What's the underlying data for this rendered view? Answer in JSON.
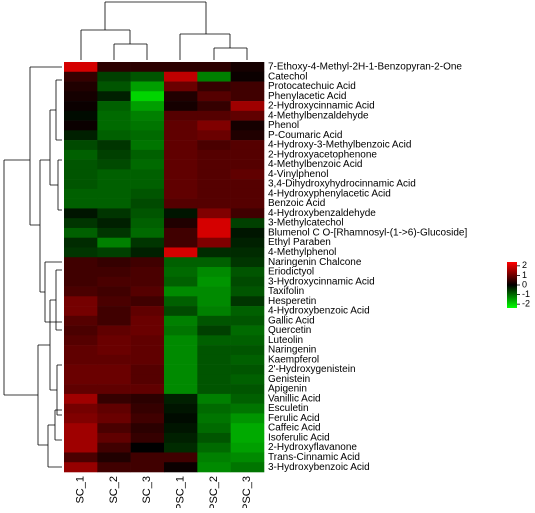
{
  "chart_data": {
    "type": "heatmap",
    "rows": [
      "7-Ethoxy-4-Methyl-2H-1-Benzopyran-2-One",
      "Catechol",
      "Protocatechuic Acid",
      "Phenylacetic Acid",
      "2-Hydroxycinnamic Acid",
      "4-Methylbenzaldehyde",
      "Phenol",
      "P-Coumaric Acid",
      "4-Hydroxy-3-Methylbenzoic Acid",
      "2-Hydroxyacetophenone",
      "4-Methylbenzoic Acid",
      "4-Vinylphenol",
      "3,4-Dihydroxyhydrocinnamic Acid",
      "4-Hydroxyphenylacetic Acid",
      "Benzoic Acid",
      "4-Hydroxybenzaldehyde",
      "3-Methylcatechol",
      "Blumenol C O-[Rhamnosyl-(1->6)-Glucoside]",
      "Ethyl Paraben",
      "4-Methylphenol",
      "Naringenin Chalcone",
      "Eriodictyol",
      "3-Hydroxycinnamic Acid",
      "Taxifolin",
      "Hesperetin",
      "4-Hydroxybenzoic Acid",
      "Gallic Acid",
      "Quercetin",
      "Luteolin",
      "Naringenin",
      "Kaempferol",
      "2'-Hydroxygenistein",
      "Genistein",
      "Apigenin",
      "Vanillic Acid",
      "Esculetin",
      "Ferulic Acid",
      "Caffeic Acid",
      "Isoferulic Acid",
      "2-Hydroxyflavanone",
      "Trans-Cinnamic Acid",
      "3-Hydroxybenzoic Acid"
    ],
    "columns": [
      "SC_1",
      "SC_2",
      "SC_3",
      "PSC_1",
      "PSC_2",
      "PSC_3"
    ],
    "values": [
      [
        2.0,
        0.4,
        0.4,
        0.4,
        0.4,
        0.2
      ],
      [
        0.5,
        -0.6,
        -0.8,
        1.8,
        -1.2,
        0.1
      ],
      [
        0.3,
        -0.8,
        -1.5,
        1.0,
        0.5,
        0.6
      ],
      [
        0.2,
        -0.3,
        -2.0,
        0.3,
        0.8,
        0.6
      ],
      [
        0.1,
        -0.9,
        -1.5,
        0.2,
        0.5,
        1.5
      ],
      [
        -0.1,
        -1.0,
        -1.2,
        0.8,
        0.8,
        0.9
      ],
      [
        0.1,
        -1.0,
        -1.1,
        0.9,
        1.2,
        0.2
      ],
      [
        -0.3,
        -0.9,
        -1.0,
        0.9,
        1.0,
        0.3
      ],
      [
        -0.7,
        -0.5,
        -1.1,
        0.9,
        0.7,
        0.8
      ],
      [
        -0.9,
        -0.6,
        -0.9,
        0.9,
        0.8,
        0.8
      ],
      [
        -0.8,
        -0.7,
        -1.0,
        0.9,
        0.8,
        0.8
      ],
      [
        -0.8,
        -0.9,
        -0.9,
        0.9,
        0.8,
        0.9
      ],
      [
        -0.8,
        -0.9,
        -0.9,
        0.9,
        0.8,
        0.8
      ],
      [
        -0.9,
        -0.9,
        -0.8,
        0.9,
        0.8,
        0.8
      ],
      [
        -0.9,
        -0.9,
        -0.7,
        0.8,
        0.8,
        0.8
      ],
      [
        -0.2,
        -0.5,
        -0.8,
        -0.2,
        1.2,
        0.6
      ],
      [
        -0.5,
        -0.3,
        -0.9,
        0.3,
        2.0,
        -0.6
      ],
      [
        -0.9,
        -0.5,
        -1.0,
        0.6,
        2.0,
        -0.2
      ],
      [
        -0.4,
        -1.2,
        -0.5,
        0.6,
        1.2,
        -0.3
      ],
      [
        -0.5,
        -0.6,
        -0.3,
        2.0,
        -0.4,
        -0.4
      ],
      [
        0.6,
        0.5,
        0.6,
        -0.9,
        -0.9,
        -0.5
      ],
      [
        0.6,
        0.6,
        0.7,
        -1.0,
        -1.3,
        -0.8
      ],
      [
        0.6,
        0.7,
        0.7,
        -0.9,
        -1.4,
        -0.7
      ],
      [
        0.7,
        0.6,
        0.8,
        -1.3,
        -1.3,
        -0.8
      ],
      [
        1.1,
        0.7,
        0.6,
        -0.9,
        -1.3,
        -0.5
      ],
      [
        1.1,
        0.6,
        0.9,
        -0.7,
        -1.2,
        -0.9
      ],
      [
        0.8,
        0.6,
        1.0,
        -1.2,
        -0.8,
        -0.8
      ],
      [
        0.7,
        0.9,
        1.0,
        -1.1,
        -0.6,
        -1.0
      ],
      [
        0.8,
        1.0,
        0.9,
        -1.3,
        -0.9,
        -0.9
      ],
      [
        0.9,
        1.0,
        0.9,
        -1.3,
        -0.8,
        -0.8
      ],
      [
        0.9,
        0.9,
        0.9,
        -1.3,
        -0.8,
        -0.9
      ],
      [
        1.0,
        1.0,
        0.8,
        -1.3,
        -0.8,
        -0.8
      ],
      [
        1.0,
        1.0,
        0.8,
        -1.3,
        -0.8,
        -0.9
      ],
      [
        0.9,
        0.9,
        0.9,
        -1.3,
        -0.8,
        -0.8
      ],
      [
        1.5,
        0.5,
        0.4,
        -0.3,
        -1.2,
        -0.9
      ],
      [
        1.1,
        0.9,
        0.5,
        -0.2,
        -1.0,
        -1.1
      ],
      [
        1.2,
        1.0,
        0.6,
        -0.1,
        -1.1,
        -1.4
      ],
      [
        1.5,
        0.7,
        0.4,
        -0.2,
        -1.0,
        -1.6
      ],
      [
        1.5,
        0.9,
        0.5,
        -0.3,
        -0.8,
        -1.6
      ],
      [
        1.5,
        0.6,
        0.0,
        -0.4,
        -1.0,
        -1.5
      ],
      [
        0.7,
        0.3,
        0.6,
        0.6,
        -1.2,
        -1.3
      ],
      [
        1.4,
        0.6,
        0.6,
        0.1,
        -1.3,
        -1.1
      ]
    ],
    "colors": {
      "low": "#00ff00",
      "mid": "#000000",
      "high": "#ff0000"
    },
    "colorbar_lim": [
      -2.4,
      2.4
    ],
    "colorbar_ticks": [
      2,
      1,
      0,
      -1,
      -2
    ]
  }
}
